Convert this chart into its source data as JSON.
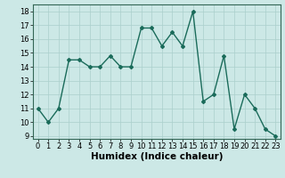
{
  "x": [
    0,
    1,
    2,
    3,
    4,
    5,
    6,
    7,
    8,
    9,
    10,
    11,
    12,
    13,
    14,
    15,
    16,
    17,
    18,
    19,
    20,
    21,
    22,
    23
  ],
  "y": [
    11,
    10,
    11,
    14.5,
    14.5,
    14,
    14,
    14.8,
    14,
    14,
    16.8,
    16.8,
    15.5,
    16.5,
    15.5,
    18,
    11.5,
    12,
    14.8,
    9.5,
    12,
    11,
    9.5,
    9
  ],
  "xlabel": "Humidex (Indice chaleur)",
  "xlim": [
    -0.5,
    23.5
  ],
  "ylim": [
    8.8,
    18.5
  ],
  "yticks": [
    9,
    10,
    11,
    12,
    13,
    14,
    15,
    16,
    17,
    18
  ],
  "xticks": [
    0,
    1,
    2,
    3,
    4,
    5,
    6,
    7,
    8,
    9,
    10,
    11,
    12,
    13,
    14,
    15,
    16,
    17,
    18,
    19,
    20,
    21,
    22,
    23
  ],
  "line_color": "#1a6b5a",
  "marker": "D",
  "marker_size": 2.0,
  "line_width": 1.0,
  "bg_color": "#cce8e6",
  "grid_color": "#aacfcc",
  "xlabel_fontsize": 7.5,
  "tick_fontsize": 6.0
}
